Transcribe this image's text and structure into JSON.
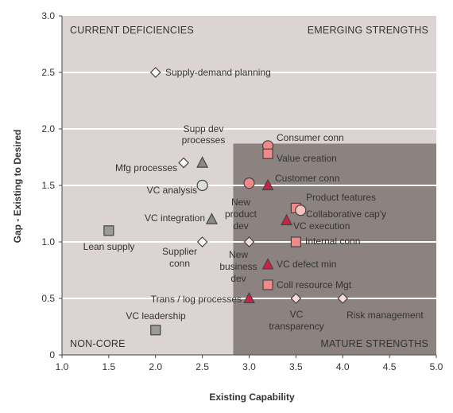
{
  "chart_data": {
    "type": "scatter",
    "xlabel": "Existing Capability",
    "ylabel": "Gap - Existing to Desired",
    "xlim": [
      1.0,
      5.0
    ],
    "ylim": [
      0,
      3.0
    ],
    "x_ticks": [
      "1.0",
      "1.5",
      "2.0",
      "2.5",
      "3.0",
      "3.5",
      "4.0",
      "4.5",
      "5.0"
    ],
    "y_ticks": [
      "0",
      "0.5",
      "1.0",
      "1.5",
      "2.0",
      "2.5",
      "3.0"
    ],
    "grid": "horizontal",
    "highlight_region": {
      "x": [
        2.83,
        5.0
      ],
      "y": [
        0,
        1.87
      ]
    },
    "quadrants": [
      {
        "label": "CURRENT DEFICIENCIES",
        "position": "top-left"
      },
      {
        "label": "EMERGING STRENGTHS",
        "position": "top-right"
      },
      {
        "label": "NON-CORE",
        "position": "bottom-left"
      },
      {
        "label": "MATURE STRENGTHS",
        "position": "bottom-right"
      }
    ],
    "points": [
      {
        "label": "Supply-demand planning",
        "x": 2.0,
        "y": 2.5,
        "marker": "diamond",
        "color": "#ffffff"
      },
      {
        "label": "Mfg processes",
        "x": 2.3,
        "y": 1.7,
        "marker": "diamond",
        "color": "#ffffff"
      },
      {
        "label": "Supp dev processes",
        "x": 2.5,
        "y": 1.7,
        "marker": "triangle",
        "color": "#8a8a8a"
      },
      {
        "label": "VC analysis",
        "x": 2.5,
        "y": 1.5,
        "marker": "circle",
        "color": "#dedede"
      },
      {
        "label": "VC integration",
        "x": 2.6,
        "y": 1.2,
        "marker": "triangle",
        "color": "#8a8a8a"
      },
      {
        "label": "Lean supply",
        "x": 1.5,
        "y": 1.1,
        "marker": "square",
        "color": "#9a9a9a"
      },
      {
        "label": "Supplier conn",
        "x": 2.5,
        "y": 1.0,
        "marker": "diamond",
        "color": "#ffffff"
      },
      {
        "label": "VC leadership",
        "x": 2.0,
        "y": 0.22,
        "marker": "square",
        "color": "#9a9a9a"
      },
      {
        "label": "Trans / log processes",
        "x": 3.0,
        "y": 0.5,
        "marker": "triangle",
        "color": "#cc2244"
      },
      {
        "label": "Consumer conn",
        "x": 3.2,
        "y": 1.85,
        "marker": "circle",
        "color": "#f08a8a"
      },
      {
        "label": "Value creation",
        "x": 3.2,
        "y": 1.78,
        "marker": "square",
        "color": "#f08a8a"
      },
      {
        "label": "Customer conn",
        "x": 3.2,
        "y": 1.5,
        "marker": "triangle",
        "color": "#cc2244"
      },
      {
        "label": "New product dev",
        "x": 3.0,
        "y": 1.52,
        "marker": "circle",
        "color": "#f08a8a"
      },
      {
        "label": "Product features",
        "x": 3.5,
        "y": 1.3,
        "marker": "square",
        "color": "#f08a8a"
      },
      {
        "label": "Collaborative cap'y",
        "x": 3.55,
        "y": 1.28,
        "marker": "circle",
        "color": "#f6c3bd"
      },
      {
        "label": "VC execution",
        "x": 3.4,
        "y": 1.19,
        "marker": "triangle",
        "color": "#cc2244"
      },
      {
        "label": "Internal conn",
        "x": 3.5,
        "y": 1.0,
        "marker": "square",
        "color": "#f08a8a"
      },
      {
        "label": "New business dev",
        "x": 3.0,
        "y": 1.0,
        "marker": "diamond",
        "color": "#f8dcd8"
      },
      {
        "label": "VC defect min",
        "x": 3.2,
        "y": 0.8,
        "marker": "triangle",
        "color": "#cc2244"
      },
      {
        "label": "Coll resource Mgt",
        "x": 3.2,
        "y": 0.62,
        "marker": "square",
        "color": "#f08a8a"
      },
      {
        "label": "VC transparency",
        "x": 3.5,
        "y": 0.5,
        "marker": "diamond",
        "color": "#f8dcd8"
      },
      {
        "label": "Risk management",
        "x": 4.0,
        "y": 0.5,
        "marker": "diamond",
        "color": "#f8dcd8"
      }
    ]
  }
}
